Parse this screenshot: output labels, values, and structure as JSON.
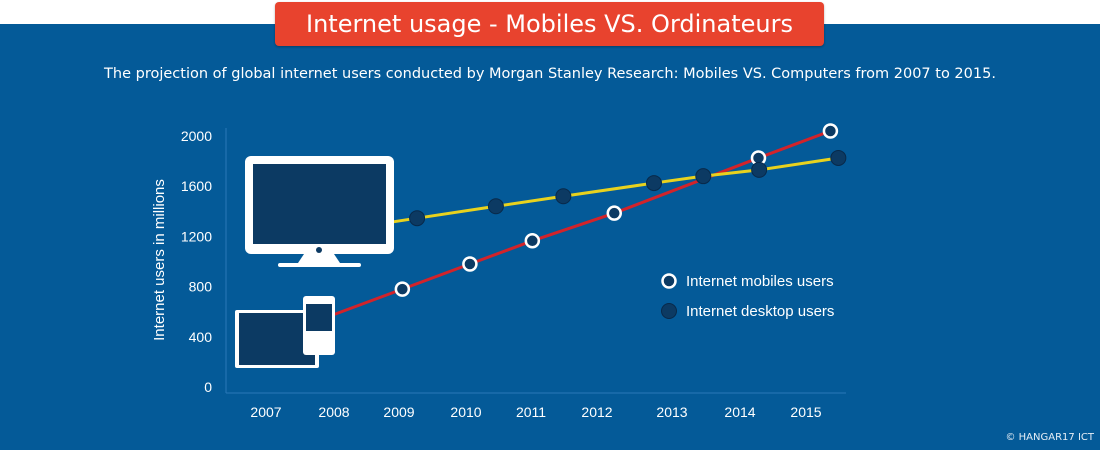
{
  "header": {
    "title": "Internet usage - Mobiles VS. Ordinateurs",
    "subtitle": "The projection of global internet users conducted by Morgan Stanley Research: Mobiles VS. Computers from 2007 to 2015.",
    "credit": "© HANGAR17 ICT"
  },
  "colors": {
    "background": "#045a98",
    "title_bg": "#e8432e",
    "mobile_line": "#d2232a",
    "desktop_line": "#e8d21e",
    "marker_dark": "#0c3a63"
  },
  "chart_data": {
    "type": "line",
    "title": "Internet usage - Mobiles VS. Ordinateurs",
    "xlabel": "",
    "ylabel": "Internet users in millions",
    "ylim": [
      0,
      2000
    ],
    "yticks": [
      "0",
      "400",
      "800",
      "1200",
      "1600",
      "2000"
    ],
    "xticks": [
      "2007",
      "2008",
      "2009",
      "2010",
      "2011",
      "2012",
      "2013",
      "2014",
      "2015"
    ],
    "legend_position": "right",
    "series": [
      {
        "name": "Internet mobiles users",
        "x": [
          2009.05,
          2010.06,
          2011.02,
          2012.23,
          2014.28,
          2015.37
        ],
        "y": [
          780,
          980,
          1165,
          1385,
          1825,
          2040
        ]
      },
      {
        "name": "Internet desktop users",
        "x": [
          2009.27,
          2010.46,
          2011.49,
          2012.76,
          2013.46,
          2014.29,
          2015.49
        ],
        "y": [
          1345,
          1440,
          1520,
          1625,
          1680,
          1730,
          1825
        ]
      }
    ]
  }
}
